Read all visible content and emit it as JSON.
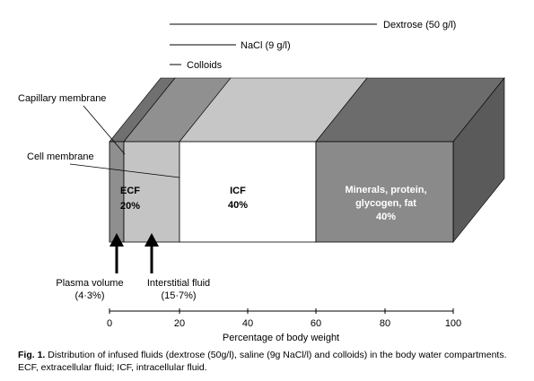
{
  "legend": {
    "dextrose": "Dextrose (50 g/l)",
    "nacl": "NaCl (9 g/l)",
    "colloids": "Colloids"
  },
  "membranes": {
    "capillary": "Capillary membrane",
    "cell": "Cell membrane"
  },
  "compartments": {
    "ecf_name": "ECF",
    "ecf_value": "20%",
    "icf_name": "ICF",
    "icf_value": "40%",
    "minerals_line1": "Minerals, protein,",
    "minerals_line2": "glycogen, fat",
    "minerals_value": "40%"
  },
  "arrows": {
    "plasma_label": "Plasma volume",
    "plasma_value": "(4·3%)",
    "interstitial_label": "Interstitial fluid",
    "interstitial_value": "(15·7%)"
  },
  "axis": {
    "ticks": [
      "0",
      "20",
      "40",
      "60",
      "80",
      "100"
    ],
    "label": "Percentage of body weight"
  },
  "caption": {
    "fig_label": "Fig. 1.",
    "text": "Distribution of infused fluids (dextrose (50g/l), saline (9g NaCl/l) and colloids) in the body water compartments. ECF, extracellular fluid; ICF, intracellular fluid."
  },
  "colors": {
    "plasma": "#8f8f8f",
    "interstitial": "#c4c4c4",
    "icf": "#ffffff",
    "minerals": "#8a8a8a",
    "side": "#5a5a5a",
    "top_plasma": "#707070",
    "top_interstitial": "#909090",
    "top_icf": "#c6c6c6",
    "top_minerals": "#6c6c6c"
  }
}
